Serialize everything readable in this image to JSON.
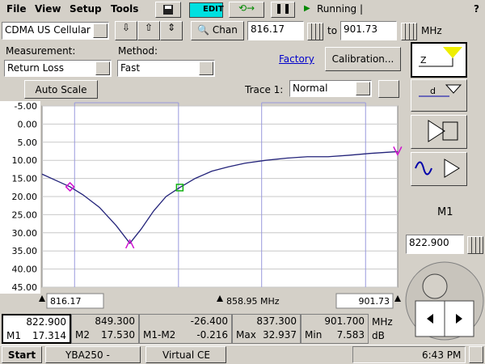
{
  "menu": [
    "File",
    "View",
    "Setup",
    "Tools"
  ],
  "toolbar": {
    "edit": "EDIT",
    "status": "Running |",
    "help": "?"
  },
  "band": "CDMA US Cellular",
  "chan": "Chan",
  "start_freq": "816.17",
  "to": "to",
  "stop_freq": "901.73",
  "freq_unit": "MHz",
  "measurement": {
    "label": "Measurement:",
    "value": "Return Loss"
  },
  "method": {
    "label": "Method:",
    "value": "Fast"
  },
  "factory": "Factory",
  "calibration": "Calibration...",
  "auto_scale": "Auto Scale",
  "trace": {
    "label": "Trace 1:",
    "value": "Normal"
  },
  "chart_data": {
    "type": "line",
    "x": [
      816.17,
      820,
      822.9,
      826,
      830,
      834,
      837.3,
      840,
      843,
      846,
      849.3,
      853,
      857,
      861,
      865,
      870,
      875,
      880,
      885,
      890,
      895,
      901.7
    ],
    "series": [
      {
        "color": "#23237a",
        "values": [
          13.8,
          15.8,
          17.3,
          19.5,
          23,
          28,
          32.9,
          29,
          24,
          20,
          17.5,
          15,
          13,
          11.8,
          10.8,
          10,
          9.4,
          9.0,
          9.0,
          8.6,
          8.1,
          7.6
        ]
      }
    ],
    "xlim": [
      816.17,
      901.73
    ],
    "xticks": [
      816.17,
      {
        "value": 858.95,
        "label": "858.95 MHz"
      },
      901.73
    ],
    "ylim": [
      -5,
      45
    ],
    "y_reversed": true,
    "yticks": [
      {
        "value": -5,
        "label": "-5.00"
      },
      {
        "value": 0,
        "label": "0.00"
      },
      {
        "value": 5,
        "label": "5.00"
      },
      {
        "value": 10,
        "label": "10.00"
      },
      {
        "value": 15,
        "label": "15.00"
      },
      {
        "value": 20,
        "label": "20.00"
      },
      {
        "value": 25,
        "label": "25.00"
      },
      {
        "value": 30,
        "label": "30.00"
      },
      {
        "value": 35,
        "label": "35.00"
      },
      {
        "value": 40,
        "label": "40.00"
      },
      {
        "value": 45,
        "label": "45.00"
      }
    ],
    "grid": true,
    "band_edges": [
      824,
      849,
      869,
      894
    ],
    "band_color": "#9999dd",
    "markers": [
      {
        "x": 822.9,
        "y": 17.314,
        "shape": "diamond",
        "color": "#d010d0"
      },
      {
        "x": 849.3,
        "y": 17.53,
        "shape": "square",
        "color": "#10b010"
      },
      {
        "x": 837.3,
        "y": 32.937,
        "shape": "peak",
        "color": "#d010d0"
      },
      {
        "x": 901.7,
        "y": 7.583,
        "shape": "valley",
        "color": "#d010d0"
      }
    ]
  },
  "readouts": [
    {
      "freq": "822.900",
      "label": "M1",
      "value": "17.314"
    },
    {
      "freq": "849.300",
      "label": "M2",
      "value": "17.530"
    },
    {
      "freq": "-26.400",
      "label": "M1-M2",
      "value": "-0.216"
    },
    {
      "freq": "837.300",
      "label": "Max",
      "value": "32.937"
    },
    {
      "freq": "901.700",
      "label": "Min",
      "value": "7.583"
    }
  ],
  "readout_units": {
    "freq": "MHz",
    "value": "dB"
  },
  "marker_panel": {
    "label": "M1",
    "freq": "822.900"
  },
  "taskbar": {
    "start": "Start",
    "tasks": [
      "YBA250 -",
      "Virtual CE"
    ],
    "clock": "6:43 PM"
  }
}
